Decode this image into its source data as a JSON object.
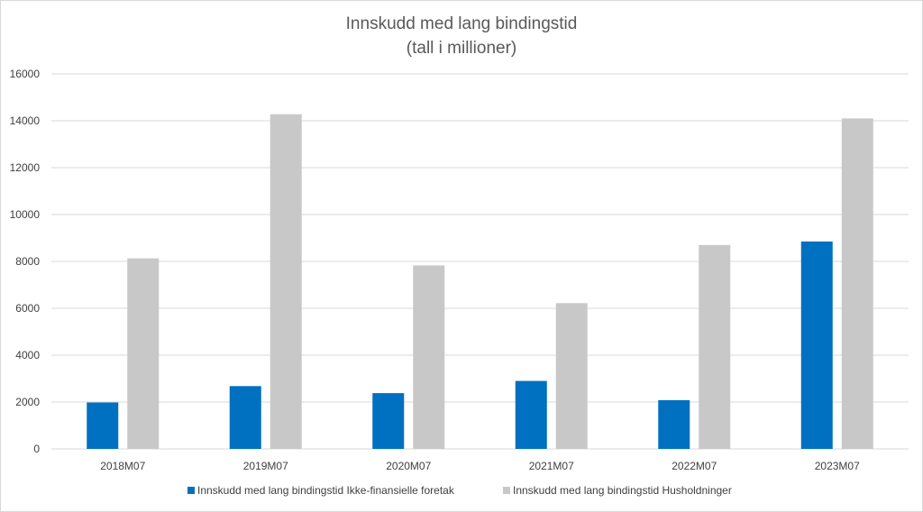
{
  "chart_data": {
    "type": "bar",
    "title": "Innskudd med lang bindingstid",
    "subtitle": "(tall i millioner)",
    "xlabel": "",
    "ylabel": "",
    "ylim": [
      0,
      16000
    ],
    "yticks": [
      0,
      2000,
      4000,
      6000,
      8000,
      10000,
      12000,
      14000,
      16000
    ],
    "grid": true,
    "legend_position": "bottom",
    "categories": [
      "2018M07",
      "2019M07",
      "2020M07",
      "2021M07",
      "2022M07",
      "2023M07"
    ],
    "series": [
      {
        "name": "Innskudd med lang bindingstid Ikke-finansielle foretak",
        "color": "#0070C0",
        "values": [
          1980,
          2680,
          2380,
          2900,
          2080,
          8850
        ]
      },
      {
        "name": "Innskudd med lang bindingstid Husholdninger",
        "color": "#C8C8C8",
        "values": [
          8130,
          14280,
          7830,
          6220,
          8700,
          14100
        ]
      }
    ]
  }
}
